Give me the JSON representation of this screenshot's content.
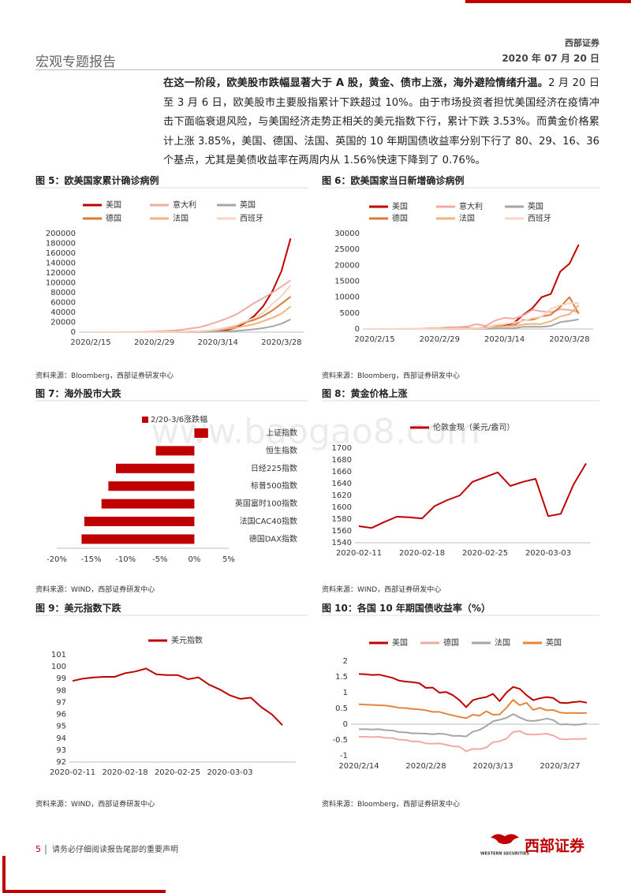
{
  "header": {
    "report_type": "宏观专题报告",
    "company": "西部证券",
    "date": "2020 年 07 月 20 日"
  },
  "body": {
    "lead": "在这一阶段，欧美股市跌幅显著大于 A 股，黄金、债市上涨，海外避险情绪升温。",
    "text": "2 月 20 日至 3 月 6 日，欧美股市主要股指累计下跌超过 10%。由于市场投资者担忧美国经济在疫情冲击下面临衰退风险，与美国经济走势正相关的美元指数下行，累计下跌 3.53%。而黄金价格累计上涨 3.85%，美国、德国、法国、英国的 10 年期国债收益率分别下行了 80、29、16、36 个基点，尤其是美债收益率在两周内从 1.56%快速下降到了 0.76%。"
  },
  "watermark": "www.baogao8.com",
  "chart_data": [
    {
      "type": "line",
      "title": "图 5：欧美国家累计确诊病例",
      "source": "资料来源：Bloomberg，西部证券研发中心",
      "categories": [
        "2020/2/15",
        null,
        null,
        null,
        null,
        null,
        null,
        "2020/2/29",
        null,
        null,
        null,
        null,
        null,
        null,
        "2020/3/14",
        null,
        null,
        null,
        null,
        null,
        null,
        "2020/3/28",
        null
      ],
      "ylim": [
        0,
        200000
      ],
      "yticks": [
        0,
        20000,
        40000,
        60000,
        80000,
        100000,
        120000,
        140000,
        160000,
        180000,
        200000
      ],
      "series": [
        {
          "name": "美国",
          "color": "#c00000",
          "values": [
            15,
            15,
            15,
            15,
            15,
            15,
            60,
            70,
            100,
            150,
            300,
            500,
            1000,
            1600,
            2700,
            4600,
            9000,
            19000,
            33000,
            53000,
            83000,
            124000,
            190000
          ]
        },
        {
          "name": "意大利",
          "color": "#f2aaa4",
          "values": [
            3,
            3,
            3,
            79,
            150,
            320,
            650,
            1130,
            2030,
            3090,
            4640,
            7380,
            10150,
            15110,
            21160,
            27980,
            35710,
            47020,
            59140,
            69180,
            80540,
            92470,
            105000
          ]
        },
        {
          "name": "英国",
          "color": "#a6a6a6",
          "values": [
            9,
            9,
            9,
            9,
            13,
            13,
            15,
            23,
            40,
            87,
            164,
            273,
            382,
            596,
            1140,
            1550,
            2630,
            3980,
            5740,
            8080,
            11660,
            17090,
            26000
          ]
        },
        {
          "name": "德国",
          "color": "#db7a35",
          "values": [
            16,
            16,
            16,
            16,
            16,
            16,
            46,
            79,
            159,
            262,
            670,
            1040,
            1460,
            2740,
            4600,
            7270,
            12300,
            19850,
            24870,
            32990,
            43940,
            57700,
            72000
          ]
        },
        {
          "name": "法国",
          "color": "#f0b37e",
          "values": [
            12,
            12,
            12,
            12,
            12,
            12,
            38,
            100,
            191,
            285,
            613,
            1120,
            1780,
            2860,
            4480,
            6630,
            9050,
            12610,
            16020,
            22300,
            29150,
            37570,
            52000
          ]
        },
        {
          "name": "西班牙",
          "color": "#f8d4c4",
          "values": [
            2,
            2,
            2,
            2,
            2,
            2,
            23,
            45,
            120,
            222,
            400,
            673,
            1700,
            3000,
            6300,
            9900,
            13900,
            21500,
            28600,
            39900,
            57800,
            73200,
            95000
          ]
        }
      ]
    },
    {
      "type": "line",
      "title": "图 6：欧美国家当日新增确诊病例",
      "source": "资料来源：Bloomberg，西部证券研发中心",
      "categories": [
        "2020/2/15",
        null,
        null,
        null,
        null,
        null,
        null,
        "2020/2/29",
        null,
        null,
        null,
        null,
        null,
        null,
        "2020/3/14",
        null,
        null,
        null,
        null,
        null,
        null,
        "2020/3/28",
        null
      ],
      "ylim": [
        0,
        30000
      ],
      "yticks": [
        0,
        5000,
        10000,
        15000,
        20000,
        25000,
        30000
      ],
      "series": [
        {
          "name": "美国",
          "color": "#c00000",
          "values": [
            0,
            0,
            0,
            0,
            0,
            0,
            5,
            3,
            30,
            50,
            120,
            200,
            500,
            600,
            1100,
            1900,
            4400,
            6500,
            10000,
            11000,
            18000,
            20500,
            26500
          ]
        },
        {
          "name": "意大利",
          "color": "#f2aaa4",
          "values": [
            0,
            0,
            0,
            17,
            70,
            90,
            230,
            240,
            560,
            590,
            770,
            1490,
            980,
            2650,
            3500,
            3230,
            4210,
            5990,
            5560,
            5250,
            6200,
            5970,
            5220
          ]
        },
        {
          "name": "英国",
          "color": "#a6a6a6",
          "values": [
            0,
            0,
            0,
            0,
            0,
            0,
            2,
            8,
            13,
            34,
            48,
            67,
            46,
            134,
            208,
            250,
            676,
            714,
            665,
            967,
            2129,
            2546,
            3009
          ]
        },
        {
          "name": "德国",
          "color": "#db7a35",
          "values": [
            0,
            0,
            0,
            0,
            0,
            0,
            26,
            31,
            130,
            100,
            300,
            200,
            400,
            1200,
            900,
            1200,
            2800,
            2900,
            3900,
            4500,
            6900,
            10000,
            4800
          ]
        },
        {
          "name": "法国",
          "color": "#f0b37e",
          "values": [
            0,
            0,
            0,
            0,
            0,
            0,
            20,
            43,
            61,
            72,
            190,
            200,
            372,
            595,
            785,
            924,
            1404,
            1617,
            1559,
            2448,
            3922,
            4611,
            7500
          ]
        },
        {
          "name": "西班牙",
          "color": "#f8d4c4",
          "values": [
            0,
            0,
            0,
            0,
            0,
            0,
            10,
            20,
            60,
            90,
            100,
            240,
            330,
            1230,
            1500,
            2000,
            2540,
            3400,
            3850,
            6300,
            7500,
            8000,
            8200
          ]
        }
      ]
    },
    {
      "type": "bar",
      "orientation": "horizontal",
      "title": "图 7：海外股市大跌",
      "source": "资料来源：WIND，西部证券研发中心",
      "categories": [
        "上证指数",
        "恒生指数",
        "日经225指数",
        "标普500指数",
        "英国富时100指数",
        "法国CAC40指数",
        "德国DAX指数"
      ],
      "xlim": [
        -20,
        5
      ],
      "xticks": [
        {
          "value": -20,
          "label": "-20%"
        },
        {
          "value": -15,
          "label": "-15%"
        },
        {
          "value": -10,
          "label": "-10%"
        },
        {
          "value": -5,
          "label": "-5%"
        },
        {
          "value": 0,
          "label": "0%"
        },
        {
          "value": 5,
          "label": "5%"
        }
      ],
      "series": [
        {
          "name": "2/20-3/6涨跌幅",
          "color": "#c00000",
          "values": [
            2.0,
            -5.6,
            -11.4,
            -12.5,
            -13.5,
            -16.0,
            -16.4
          ]
        }
      ]
    },
    {
      "type": "line",
      "title": "图 8：黄金价格上涨",
      "source": "资料来源：WIND，西部证券研发中心",
      "categories": [
        "2020-02-11",
        null,
        null,
        null,
        null,
        "2020-02-18",
        null,
        null,
        null,
        null,
        "2020-02-25",
        null,
        null,
        null,
        null,
        "2020-03-03",
        null,
        null,
        null
      ],
      "ylim": [
        1540,
        1700
      ],
      "yticks": [
        1540,
        1560,
        1580,
        1600,
        1620,
        1640,
        1660,
        1680,
        1700
      ],
      "series": [
        {
          "name": "伦敦金现（美元/盎司）",
          "color": "#c00000",
          "values": [
            1568,
            1565,
            1575,
            1584,
            1583,
            1581,
            1602,
            1612,
            1620,
            1643,
            1651,
            1659,
            1636,
            1643,
            1648,
            1585,
            1589,
            1638,
            1674
          ]
        }
      ]
    },
    {
      "type": "line",
      "title": "图 9：美元指数下跌",
      "source": "资料来源：WIND，西部证券研发中心",
      "categories": [
        "2020-02-11",
        null,
        null,
        null,
        null,
        "2020-02-18",
        null,
        null,
        null,
        null,
        "2020-02-25",
        null,
        null,
        null,
        null,
        "2020-03-03",
        null,
        null,
        null,
        null,
        null
      ],
      "ylim": [
        92,
        101
      ],
      "yticks": [
        92,
        93,
        94,
        95,
        96,
        97,
        98,
        99,
        100,
        101
      ],
      "series": [
        {
          "name": "美元指数",
          "color": "#c00000",
          "values": [
            98.8,
            99.0,
            99.1,
            99.15,
            99.15,
            99.45,
            99.6,
            99.85,
            99.35,
            99.3,
            99.3,
            98.95,
            99.1,
            98.5,
            98.1,
            97.6,
            97.3,
            97.4,
            96.6,
            96.0,
            95.1
          ]
        }
      ]
    },
    {
      "type": "line",
      "title": "图 10：各国 10 年期国债收益率（%）",
      "source": "资料来源：Bloomberg，西部证券研发中心",
      "categories": [
        "2020/2/14",
        null,
        null,
        null,
        null,
        null,
        null,
        null,
        null,
        null,
        "2020/2/28",
        null,
        null,
        null,
        null,
        null,
        null,
        null,
        null,
        null,
        "2020/3/13",
        null,
        null,
        null,
        null,
        null,
        null,
        null,
        null,
        null,
        "2020/3/27",
        null,
        null,
        null,
        null
      ],
      "ylim": [
        -1,
        2
      ],
      "yticks": [
        -1,
        -0.5,
        0,
        0.5,
        1,
        1.5,
        2
      ],
      "zero_line": true,
      "series": [
        {
          "name": "美国",
          "color": "#c00000",
          "values": [
            1.59,
            1.58,
            1.56,
            1.57,
            1.52,
            1.47,
            1.38,
            1.35,
            1.33,
            1.3,
            1.15,
            1.16,
            1.0,
            1.02,
            0.92,
            0.76,
            0.54,
            0.76,
            0.82,
            0.86,
            0.96,
            0.73,
            1.0,
            1.18,
            1.12,
            0.92,
            0.76,
            0.82,
            0.86,
            0.83,
            0.68,
            0.67,
            0.7,
            0.72,
            0.68
          ]
        },
        {
          "name": "德国",
          "color": "#f2aaa4",
          "values": [
            -0.4,
            -0.4,
            -0.41,
            -0.4,
            -0.43,
            -0.44,
            -0.49,
            -0.5,
            -0.55,
            -0.55,
            -0.61,
            -0.62,
            -0.61,
            -0.65,
            -0.7,
            -0.71,
            -0.86,
            -0.78,
            -0.79,
            -0.74,
            -0.57,
            -0.54,
            -0.46,
            -0.25,
            -0.22,
            -0.32,
            -0.33,
            -0.32,
            -0.3,
            -0.36,
            -0.47,
            -0.48,
            -0.47,
            -0.47,
            -0.46
          ]
        },
        {
          "name": "法国",
          "color": "#a6a6a6",
          "values": [
            -0.16,
            -0.16,
            -0.17,
            -0.16,
            -0.19,
            -0.2,
            -0.25,
            -0.26,
            -0.29,
            -0.29,
            -0.3,
            -0.32,
            -0.3,
            -0.32,
            -0.37,
            -0.37,
            -0.39,
            -0.24,
            -0.18,
            -0.06,
            0.09,
            0.14,
            0.2,
            0.32,
            0.21,
            0.12,
            0.1,
            0.13,
            0.18,
            0.13,
            -0.01,
            0.0,
            -0.02,
            -0.01,
            0.02
          ]
        },
        {
          "name": "英国",
          "color": "#e5853d",
          "values": [
            0.63,
            0.62,
            0.61,
            0.6,
            0.59,
            0.56,
            0.52,
            0.51,
            0.48,
            0.47,
            0.44,
            0.39,
            0.39,
            0.33,
            0.28,
            0.23,
            0.19,
            0.3,
            0.27,
            0.41,
            0.3,
            0.31,
            0.52,
            0.77,
            0.6,
            0.68,
            0.45,
            0.52,
            0.44,
            0.45,
            0.37,
            0.35,
            0.36,
            0.35,
            0.36
          ]
        }
      ]
    }
  ],
  "footer": {
    "page": "5",
    "notice": "请务必仔细阅读报告尾部的重要声明",
    "logo_text": "西部证券",
    "logo_en": "WESTERN SECURITIES"
  }
}
